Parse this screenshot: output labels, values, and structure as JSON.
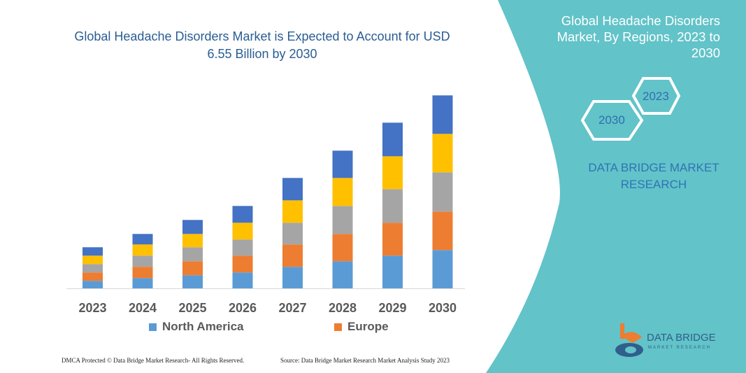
{
  "title": "Global Headache Disorders Market is Expected to Account for USD 6.55 Billion by 2030",
  "side_panel": {
    "title": "Global Headache Disorders Market, By Regions, 2023 to 2030",
    "hex_start": "2023",
    "hex_end": "2030",
    "brand": "DATA BRIDGE MARKET RESEARCH",
    "logo_text": "DATA BRIDGE",
    "logo_sub": "MARKET RESEARCH",
    "color": "#62C3C9"
  },
  "footer": {
    "left": "DMCA Protected © Data Bridge Market Research- All Rights Reserved.",
    "right": "Source: Data Bridge Market Research Market Analysis Study 2023"
  },
  "chart_data": {
    "type": "bar",
    "stacked": true,
    "categories": [
      "2023",
      "2024",
      "2025",
      "2026",
      "2027",
      "2028",
      "2029",
      "2030"
    ],
    "series": [
      {
        "name": "North America",
        "color": "#5B9BD5",
        "values": [
          10.7,
          14.7,
          18.7,
          22.7,
          30.7,
          38.7,
          46.7,
          54.7
        ]
      },
      {
        "name": "Europe",
        "color": "#ED7D31",
        "values": [
          12,
          16,
          20,
          24,
          32,
          39,
          47,
          55
        ]
      },
      {
        "color": "#A5A5A5",
        "values": [
          12,
          16,
          20,
          23,
          31,
          40,
          48,
          56
        ]
      },
      {
        "color": "#FFC000",
        "values": [
          12,
          16,
          19,
          24,
          32,
          40,
          47,
          55
        ]
      },
      {
        "color": "#4472C4",
        "values": [
          12,
          15,
          20,
          24,
          32,
          39,
          48,
          55
        ]
      }
    ],
    "legend_position": "bottom",
    "grid": false
  }
}
